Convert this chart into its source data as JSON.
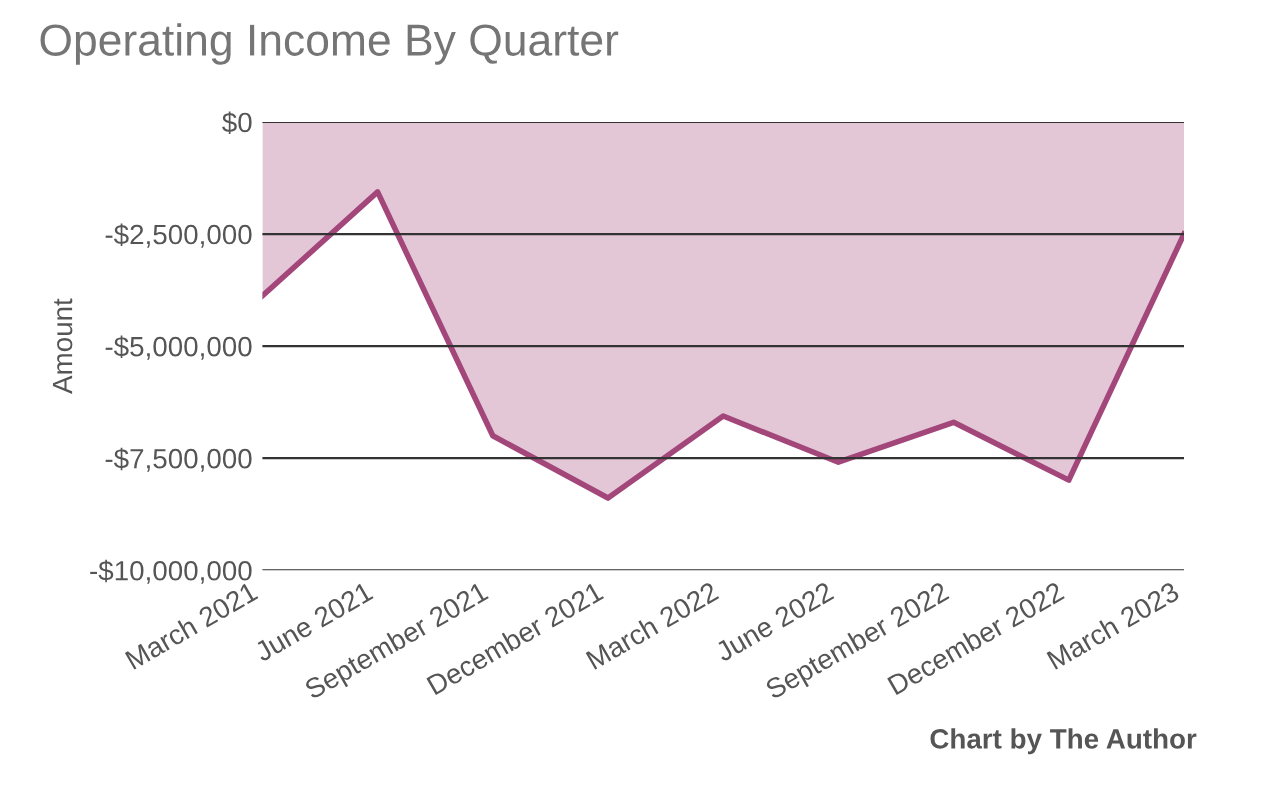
{
  "chart_data": {
    "type": "area",
    "title": "Operating Income By Quarter",
    "ylabel": "Amount",
    "annotations": [
      "Chart by The Author"
    ],
    "categories": [
      "March 2021",
      "June 2021",
      "September 2021",
      "December 2021",
      "March 2022",
      "June 2022",
      "September 2022",
      "December 2022",
      "March 2023"
    ],
    "series": [
      {
        "color": "#a3477b",
        "values": [
          -3880000,
          -1560000,
          -7000000,
          -8390000,
          -6560000,
          -7590000,
          -6700000,
          -7990000,
          -2500000
        ]
      }
    ],
    "ylim": [
      -10000000,
      0
    ],
    "yticks": [
      {
        "value": -10000000,
        "label": "-$10,000,000"
      },
      {
        "value": -7500000,
        "label": "-$7,500,000"
      },
      {
        "value": -5000000,
        "label": "-$5,000,000"
      },
      {
        "value": -2500000,
        "label": "-$2,500,000"
      },
      {
        "value": 0,
        "label": "$0"
      }
    ],
    "grid": "y",
    "legend": false
  }
}
